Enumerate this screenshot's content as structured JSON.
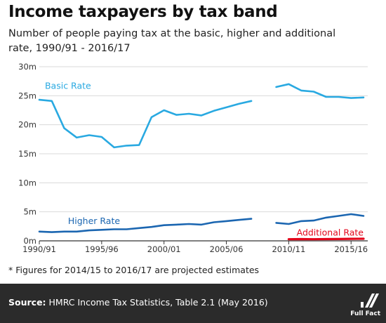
{
  "title": "Income taxpayers by tax band",
  "subtitle": "Number of people paying tax at the basic, higher and additional rate, 1990/91 - 2016/17",
  "footnote": "* Figures for 2014/15 to 2016/17 are projected estimates",
  "source_label": "Source:",
  "source_text": "HMRC Income Tax Statistics, Table 2.1 (May 2016)",
  "logo_text": "Full Fact",
  "colors": {
    "basic": "#29a9e1",
    "higher": "#1b66b1",
    "additional": "#e3061b",
    "grid": "#d9d9d9",
    "axis": "#333333",
    "footer_bg": "#2b2b2b"
  },
  "chart_data": {
    "type": "line",
    "title": "Income taxpayers by tax band",
    "xlabel": "",
    "ylabel": "",
    "ylim": [
      0,
      30
    ],
    "yunit": "m",
    "y_ticks": [
      0,
      5,
      10,
      15,
      20,
      25,
      30
    ],
    "y_tick_labels": [
      "0m",
      "5m",
      "10m",
      "15m",
      "20m",
      "25m",
      "30m"
    ],
    "x_range": [
      0,
      26
    ],
    "x_tick_labels": [
      {
        "x": 0,
        "label": "1990/91"
      },
      {
        "x": 5,
        "label": "1995/96"
      },
      {
        "x": 10,
        "label": "2000/01"
      },
      {
        "x": 15,
        "label": "2005/06"
      },
      {
        "x": 20,
        "label": "2010/11"
      },
      {
        "x": 25,
        "label": "2015/16"
      }
    ],
    "grid": true,
    "legend": "inline labels",
    "series": [
      {
        "name": "Basic Rate",
        "color": "#29a9e1",
        "segments": [
          [
            [
              0,
              24.3
            ],
            [
              1,
              24.1
            ],
            [
              2,
              19.4
            ],
            [
              3,
              17.8
            ],
            [
              4,
              18.2
            ],
            [
              5,
              17.9
            ],
            [
              6,
              16.1
            ],
            [
              7,
              16.4
            ],
            [
              8,
              16.5
            ],
            [
              9,
              21.3
            ],
            [
              10,
              22.5
            ],
            [
              11,
              21.7
            ],
            [
              12,
              21.9
            ],
            [
              13,
              21.6
            ],
            [
              14,
              22.4
            ],
            [
              15,
              23.0
            ],
            [
              16,
              23.6
            ],
            [
              17,
              24.1
            ]
          ],
          [
            [
              19,
              26.5
            ],
            [
              20,
              27.0
            ],
            [
              21,
              25.9
            ],
            [
              22,
              25.7
            ],
            [
              23,
              24.8
            ],
            [
              24,
              24.8
            ],
            [
              25,
              24.6
            ],
            [
              26,
              24.7
            ]
          ]
        ]
      },
      {
        "name": "Higher Rate",
        "color": "#1b66b1",
        "segments": [
          [
            [
              0,
              1.6
            ],
            [
              1,
              1.5
            ],
            [
              2,
              1.6
            ],
            [
              3,
              1.6
            ],
            [
              4,
              1.8
            ],
            [
              5,
              1.9
            ],
            [
              6,
              2.0
            ],
            [
              7,
              2.0
            ],
            [
              8,
              2.2
            ],
            [
              9,
              2.4
            ],
            [
              10,
              2.7
            ],
            [
              11,
              2.8
            ],
            [
              12,
              2.9
            ],
            [
              13,
              2.8
            ],
            [
              14,
              3.2
            ],
            [
              15,
              3.4
            ],
            [
              16,
              3.6
            ],
            [
              17,
              3.8
            ]
          ],
          [
            [
              19,
              3.1
            ],
            [
              20,
              2.9
            ],
            [
              21,
              3.4
            ],
            [
              22,
              3.5
            ],
            [
              23,
              4.0
            ],
            [
              24,
              4.3
            ],
            [
              25,
              4.6
            ],
            [
              26,
              4.3
            ]
          ]
        ]
      },
      {
        "name": "Additional Rate",
        "color": "#e3061b",
        "segments": [
          [
            [
              20,
              0.28
            ],
            [
              21,
              0.3
            ],
            [
              22,
              0.28
            ],
            [
              23,
              0.3
            ],
            [
              24,
              0.32
            ],
            [
              25,
              0.35
            ],
            [
              26,
              0.36
            ]
          ]
        ]
      }
    ]
  }
}
